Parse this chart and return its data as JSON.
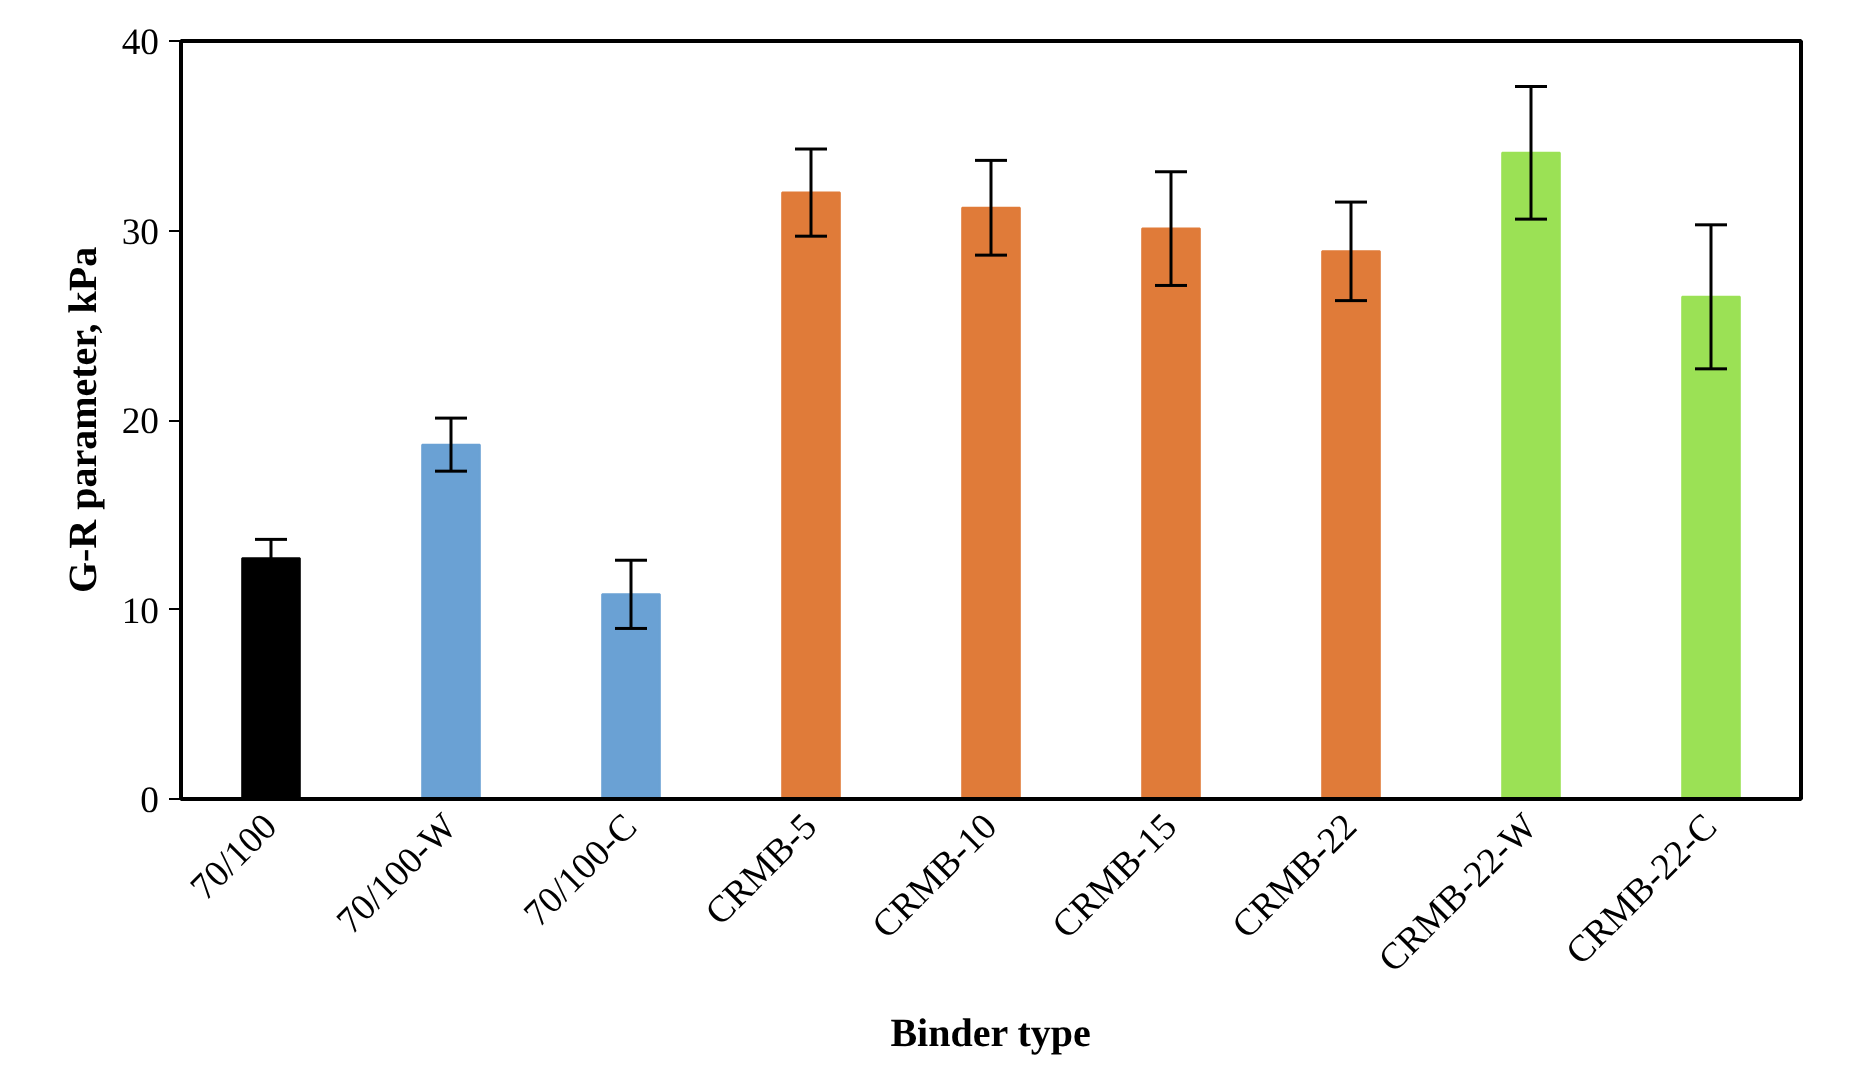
{
  "chart_data": {
    "type": "bar",
    "xlabel": "Binder type",
    "ylabel": "G-R parameter, kPa",
    "categories": [
      "70/100",
      "70/100-W",
      "70/100-C",
      "CRMB-5",
      "CRMB-10",
      "CRMB-15",
      "CRMB-22",
      "CRMB-22-W",
      "CRMB-22-C"
    ],
    "values": [
      12.7,
      18.7,
      10.8,
      32.0,
      31.2,
      30.1,
      28.9,
      34.1,
      26.5
    ],
    "errors": [
      1.0,
      1.4,
      1.8,
      2.3,
      2.5,
      3.0,
      2.6,
      3.5,
      3.8
    ],
    "colors": [
      "#000000",
      "#6aa1d4",
      "#6aa1d4",
      "#e07b39",
      "#e07b39",
      "#e07b39",
      "#e07b39",
      "#9be155",
      "#9be155"
    ],
    "ylim": [
      0,
      40
    ],
    "yticks": [
      0,
      10,
      20,
      30,
      40
    ],
    "grid": false
  }
}
